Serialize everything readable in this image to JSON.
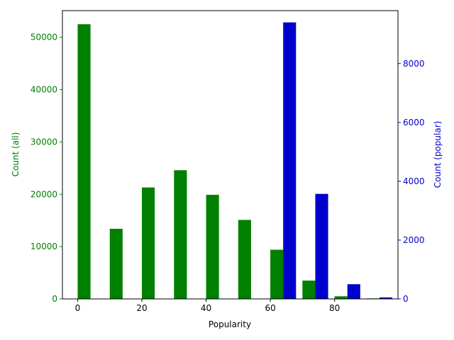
{
  "chart_data": {
    "type": "bar",
    "xlabel": "Popularity",
    "xlim": [
      -4.75,
      99.75
    ],
    "x_ticks": [
      0,
      20,
      40,
      60,
      80
    ],
    "left_axis": {
      "label": "Count (all)",
      "color": "#008000",
      "ylim": [
        0,
        55100
      ],
      "ticks": [
        0,
        10000,
        20000,
        30000,
        40000,
        50000
      ]
    },
    "right_axis": {
      "label": "Count (popular)",
      "color": "#0000cc",
      "ylim": [
        0,
        9800
      ],
      "ticks": [
        0,
        2000,
        4000,
        6000,
        8000
      ]
    },
    "series": [
      {
        "axis": "left",
        "color": "#008000",
        "x": [
          2,
          12,
          22,
          32,
          42,
          52,
          62,
          72,
          82,
          92
        ],
        "values": [
          52500,
          13400,
          21300,
          24600,
          19900,
          15100,
          9400,
          3500,
          500,
          100
        ]
      },
      {
        "axis": "right",
        "color": "#0000cc",
        "x": [
          66,
          76,
          86,
          96
        ],
        "values": [
          9400,
          3570,
          500,
          50
        ]
      }
    ]
  }
}
